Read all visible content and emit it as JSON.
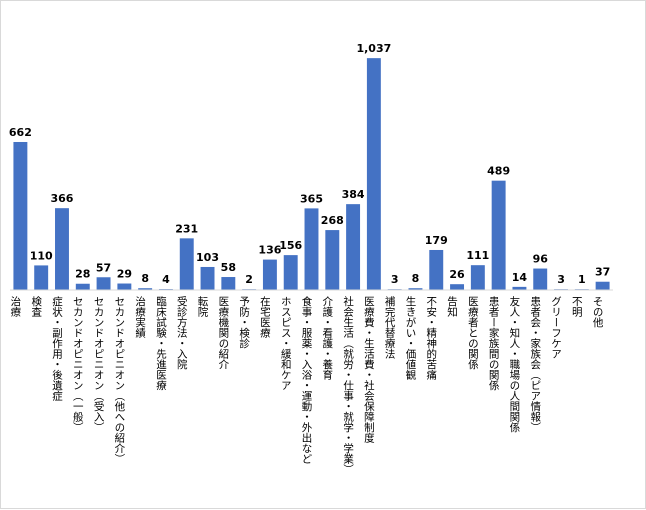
{
  "chart_data": {
    "type": "bar",
    "title": "",
    "xlabel": "",
    "ylabel": "",
    "ylim": [
      0,
      1060
    ],
    "bar_color": "#4472C4",
    "axis_color": "#d9d9d9",
    "grid": false,
    "legend": false,
    "categories": [
      "治療",
      "検査",
      "症状・副作用・後遺症",
      "セカンドオピニオン（一般）",
      "セカンドオピニオン（受入）",
      "セカンドオピニオン（他への紹介）",
      "治療実績",
      "臨床試験・先進医療",
      "受診方法・入院",
      "転院",
      "医療機関の紹介",
      "予防・検診",
      "在宅医療",
      "ホスピス・緩和ケア",
      "食事・服薬・入浴・運動・外出など",
      "介護・看護・養育",
      "社会生活（就労・仕事・就学・学業）",
      "医療費・生活費・社会保障制度",
      "補完代替療法",
      "生きがい・価値観",
      "不安・精神的苦痛",
      "告知",
      "医療者との関係",
      "患者ー家族間の関係",
      "友人・知人・職場の人間関係",
      "患者会・家族会（ピア情報）",
      "グリーフケア",
      "不明",
      "その他"
    ],
    "values": [
      662,
      110,
      366,
      28,
      57,
      29,
      8,
      4,
      231,
      103,
      58,
      2,
      136,
      156,
      365,
      268,
      384,
      1037,
      3,
      8,
      179,
      26,
      111,
      489,
      14,
      96,
      3,
      1,
      37
    ],
    "value_labels": [
      "662",
      "110",
      "366",
      "28",
      "57",
      "29",
      "8",
      "4",
      "231",
      "103",
      "58",
      "2",
      "136",
      "156",
      "365",
      "268",
      "384",
      "1,037",
      "3",
      "8",
      "179",
      "26",
      "111",
      "489",
      "14",
      "96",
      "3",
      "1",
      "37"
    ]
  }
}
